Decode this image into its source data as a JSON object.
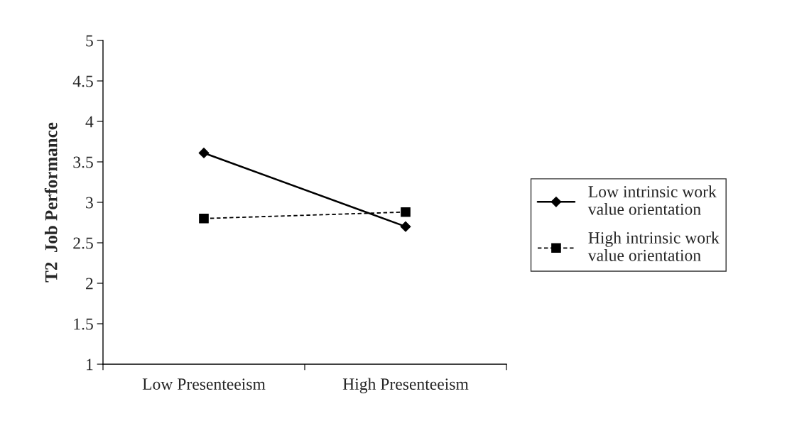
{
  "chart_data": {
    "type": "line",
    "ylabel": "T2  Job Performance",
    "categories": [
      "Low Presenteeism",
      "High Presenteeism"
    ],
    "series": [
      {
        "name": "Low intrinsic work value orientation",
        "color": "#000000",
        "values": [
          3.61,
          2.7
        ],
        "marker": "diamond",
        "line_style": "solid"
      },
      {
        "name": "High intrinsic work value orientation",
        "color": "#000000",
        "values": [
          2.8,
          2.88
        ],
        "marker": "square",
        "line_style": "dashed"
      }
    ],
    "ylim": [
      1,
      5
    ],
    "yticks": [
      1,
      1.5,
      2,
      2.5,
      3,
      3.5,
      4,
      4.5,
      5
    ],
    "grid": false,
    "legend": "right"
  }
}
